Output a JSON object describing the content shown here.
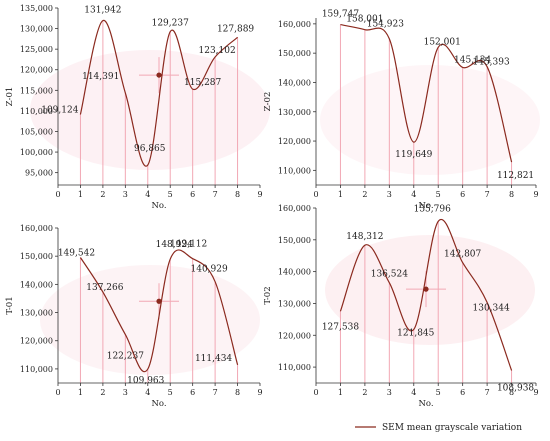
{
  "legend": {
    "label": "SEM mean grayscale variation",
    "color": "#8B2A1F"
  },
  "colors": {
    "curve": "#8B2A1F",
    "marker": "#8B2A1F",
    "vline": "#F2A8B4",
    "glow": "#F7C9D2",
    "axis": "#333333"
  },
  "chart_data": [
    {
      "type": "line",
      "title": "",
      "xlabel": "No.",
      "ylabel": "Z-01",
      "xlim": [
        0,
        9
      ],
      "ylim": [
        92000,
        135000
      ],
      "xticks": [
        0,
        1,
        2,
        3,
        4,
        5,
        6,
        7,
        8,
        9
      ],
      "yticks": [
        95000,
        100000,
        105000,
        110000,
        115000,
        120000,
        125000,
        130000,
        135000
      ],
      "ytick_labels": [
        "95,000",
        "100,000",
        "105,000",
        "110,000",
        "115,000",
        "120,000",
        "125,000",
        "130,000",
        "135,000"
      ],
      "x": [
        1,
        2,
        3,
        4,
        5,
        6,
        7,
        8
      ],
      "series": [
        {
          "values": [
            109124,
            131942,
            114391,
            96865,
            129237,
            115287,
            123102,
            127889
          ]
        }
      ],
      "point_labels": [
        "109,124",
        "131,942",
        "114,391",
        "96,865",
        "129,237",
        "115,287",
        "123,102",
        "127,889"
      ],
      "marker": {
        "x": 4.5,
        "y": 118700
      }
    },
    {
      "type": "line",
      "title": "",
      "xlabel": "No.",
      "ylabel": "Z-02",
      "xlim": [
        0,
        9
      ],
      "ylim": [
        105000,
        162000
      ],
      "xticks": [
        0,
        1,
        2,
        3,
        4,
        5,
        6,
        7,
        8,
        9
      ],
      "yticks": [
        110000,
        120000,
        130000,
        140000,
        150000,
        160000
      ],
      "ytick_labels": [
        "110,000",
        "120,000",
        "130,000",
        "140,000",
        "150,000",
        "160,000"
      ],
      "x": [
        1,
        2,
        3,
        4,
        5,
        6,
        7,
        8
      ],
      "series": [
        {
          "values": [
            159747,
            158001,
            154923,
            119649,
            152001,
            145134,
            145393,
            112821
          ]
        }
      ],
      "point_labels": [
        "159,747",
        "158,001",
        "154,923",
        "119,649",
        "152,001",
        "145,134",
        "145,393",
        "112,821"
      ],
      "marker": null
    },
    {
      "type": "line",
      "title": "",
      "xlabel": "No.",
      "ylabel": "T-01",
      "xlim": [
        0,
        9
      ],
      "ylim": [
        105000,
        160000
      ],
      "xticks": [
        0,
        1,
        2,
        3,
        4,
        5,
        6,
        7,
        8,
        9
      ],
      "yticks": [
        110000,
        120000,
        130000,
        140000,
        150000,
        160000
      ],
      "ytick_labels": [
        "110,000",
        "120,000",
        "130,000",
        "140,000",
        "150,000",
        "160,000"
      ],
      "x": [
        1,
        2,
        3,
        4,
        5,
        6,
        7,
        8
      ],
      "series": [
        {
          "values": [
            149542,
            137266,
            122237,
            109963,
            148924,
            149112,
            140929,
            111434
          ]
        }
      ],
      "point_labels": [
        "149,542",
        "137,266",
        "122,237",
        "109,963",
        "148,924",
        "149,112",
        "140,929",
        "111,434"
      ],
      "marker": {
        "x": 4.5,
        "y": 134000
      }
    },
    {
      "type": "line",
      "title": "",
      "xlabel": "No.",
      "ylabel": "T-02",
      "xlim": [
        0,
        9
      ],
      "ylim": [
        105000,
        160000
      ],
      "xticks": [
        0,
        1,
        2,
        3,
        4,
        5,
        6,
        7,
        8,
        9
      ],
      "yticks": [
        110000,
        120000,
        130000,
        140000,
        150000,
        160000
      ],
      "ytick_labels": [
        "110,000",
        "120,000",
        "130,000",
        "140,000",
        "150,000",
        "160,000"
      ],
      "x": [
        1,
        2,
        3,
        4,
        5,
        6,
        7,
        8
      ],
      "series": [
        {
          "values": [
            127538,
            148312,
            136524,
            121845,
            155796,
            142807,
            130344,
            108938
          ]
        }
      ],
      "point_labels": [
        "127,538",
        "148,312",
        "136,524",
        "121,845",
        "155,796",
        "142,807",
        "130,344",
        "108,938"
      ],
      "marker": {
        "x": 4.5,
        "y": 134500
      }
    }
  ]
}
